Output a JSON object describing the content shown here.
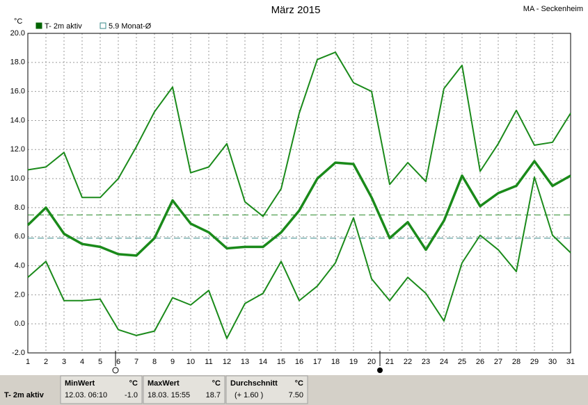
{
  "chart_data": {
    "type": "line",
    "title": "März 2015",
    "station": "MA - Seckenheim",
    "y_unit": "°C",
    "legend": [
      {
        "label": "T- 2m aktiv",
        "color": "#006400",
        "filled": true
      },
      {
        "label": "5.9 Monat-Ø",
        "color": "#3a8a8a",
        "filled": false
      }
    ],
    "x": [
      1,
      2,
      3,
      4,
      5,
      6,
      7,
      8,
      9,
      10,
      11,
      12,
      13,
      14,
      15,
      16,
      17,
      18,
      19,
      20,
      21,
      22,
      23,
      24,
      25,
      26,
      27,
      28,
      29,
      30,
      31
    ],
    "xlim": [
      1,
      31
    ],
    "xticks": [
      1,
      2,
      3,
      4,
      5,
      6,
      7,
      8,
      9,
      10,
      11,
      12,
      13,
      14,
      15,
      16,
      17,
      18,
      19,
      20,
      21,
      22,
      23,
      24,
      25,
      26,
      27,
      28,
      29,
      30,
      31
    ],
    "ylim": [
      -2,
      20
    ],
    "yticks": [
      {
        "value": -2,
        "label": "-2.0"
      },
      {
        "value": 0,
        "label": "0.0"
      },
      {
        "value": 2,
        "label": "2.0"
      },
      {
        "value": 4,
        "label": "4.0"
      },
      {
        "value": 6,
        "label": "6.0"
      },
      {
        "value": 8,
        "label": "8.0"
      },
      {
        "value": 10,
        "label": "10.0"
      },
      {
        "value": 12,
        "label": "12.0"
      },
      {
        "value": 14,
        "label": "14.0"
      },
      {
        "value": 16,
        "label": "16.0"
      },
      {
        "value": 18,
        "label": "18.0"
      },
      {
        "value": 20,
        "label": "20.0"
      }
    ],
    "grid": true,
    "series": [
      {
        "color": "#1a8a1a",
        "width": 2,
        "values": [
          10.6,
          10.8,
          11.8,
          8.7,
          8.7,
          10.0,
          12.2,
          14.6,
          16.3,
          10.4,
          10.8,
          12.4,
          8.4,
          7.4,
          9.3,
          14.5,
          18.2,
          18.7,
          16.6,
          16.0,
          9.6,
          11.1,
          9.8,
          16.2,
          17.8,
          10.5,
          12.4,
          14.7,
          12.3,
          12.5,
          14.5
        ]
      },
      {
        "color": "#1a8a1a",
        "width": 3.5,
        "values": [
          6.8,
          8.0,
          6.2,
          5.5,
          5.3,
          4.8,
          4.7,
          5.9,
          8.5,
          6.9,
          6.3,
          5.2,
          5.3,
          5.3,
          6.3,
          7.8,
          10.0,
          11.1,
          11.0,
          8.7,
          5.9,
          7.0,
          5.1,
          7.1,
          10.2,
          8.1,
          9.0,
          9.5,
          11.2,
          9.5,
          10.2
        ]
      },
      {
        "color": "#1a8a1a",
        "width": 2,
        "values": [
          3.2,
          4.3,
          1.6,
          1.6,
          1.7,
          -0.4,
          -0.8,
          -0.5,
          1.8,
          1.3,
          2.3,
          -1.0,
          1.4,
          2.1,
          4.3,
          1.6,
          2.6,
          4.2,
          7.3,
          3.1,
          1.6,
          3.2,
          2.1,
          0.2,
          4.2,
          6.1,
          5.1,
          3.6,
          10.1,
          6.1,
          4.9
        ]
      }
    ],
    "reference_lines": [
      {
        "value": 7.5,
        "color": "#2a8a2a"
      },
      {
        "value": 5.9,
        "color": "#3a8a8a"
      }
    ]
  },
  "summary": {
    "label": "T- 2m aktiv",
    "min": {
      "header": "MinWert",
      "unit": "°C",
      "time": "12.03.  06:10",
      "value": "-1.0"
    },
    "max": {
      "header": "MaxWert",
      "unit": "°C",
      "time": "18.03.  15:55",
      "value": "18.7"
    },
    "avg": {
      "header": "Durchschnitt",
      "unit": "°C",
      "time": "(+ 1.60 )",
      "value": "7.50"
    }
  }
}
